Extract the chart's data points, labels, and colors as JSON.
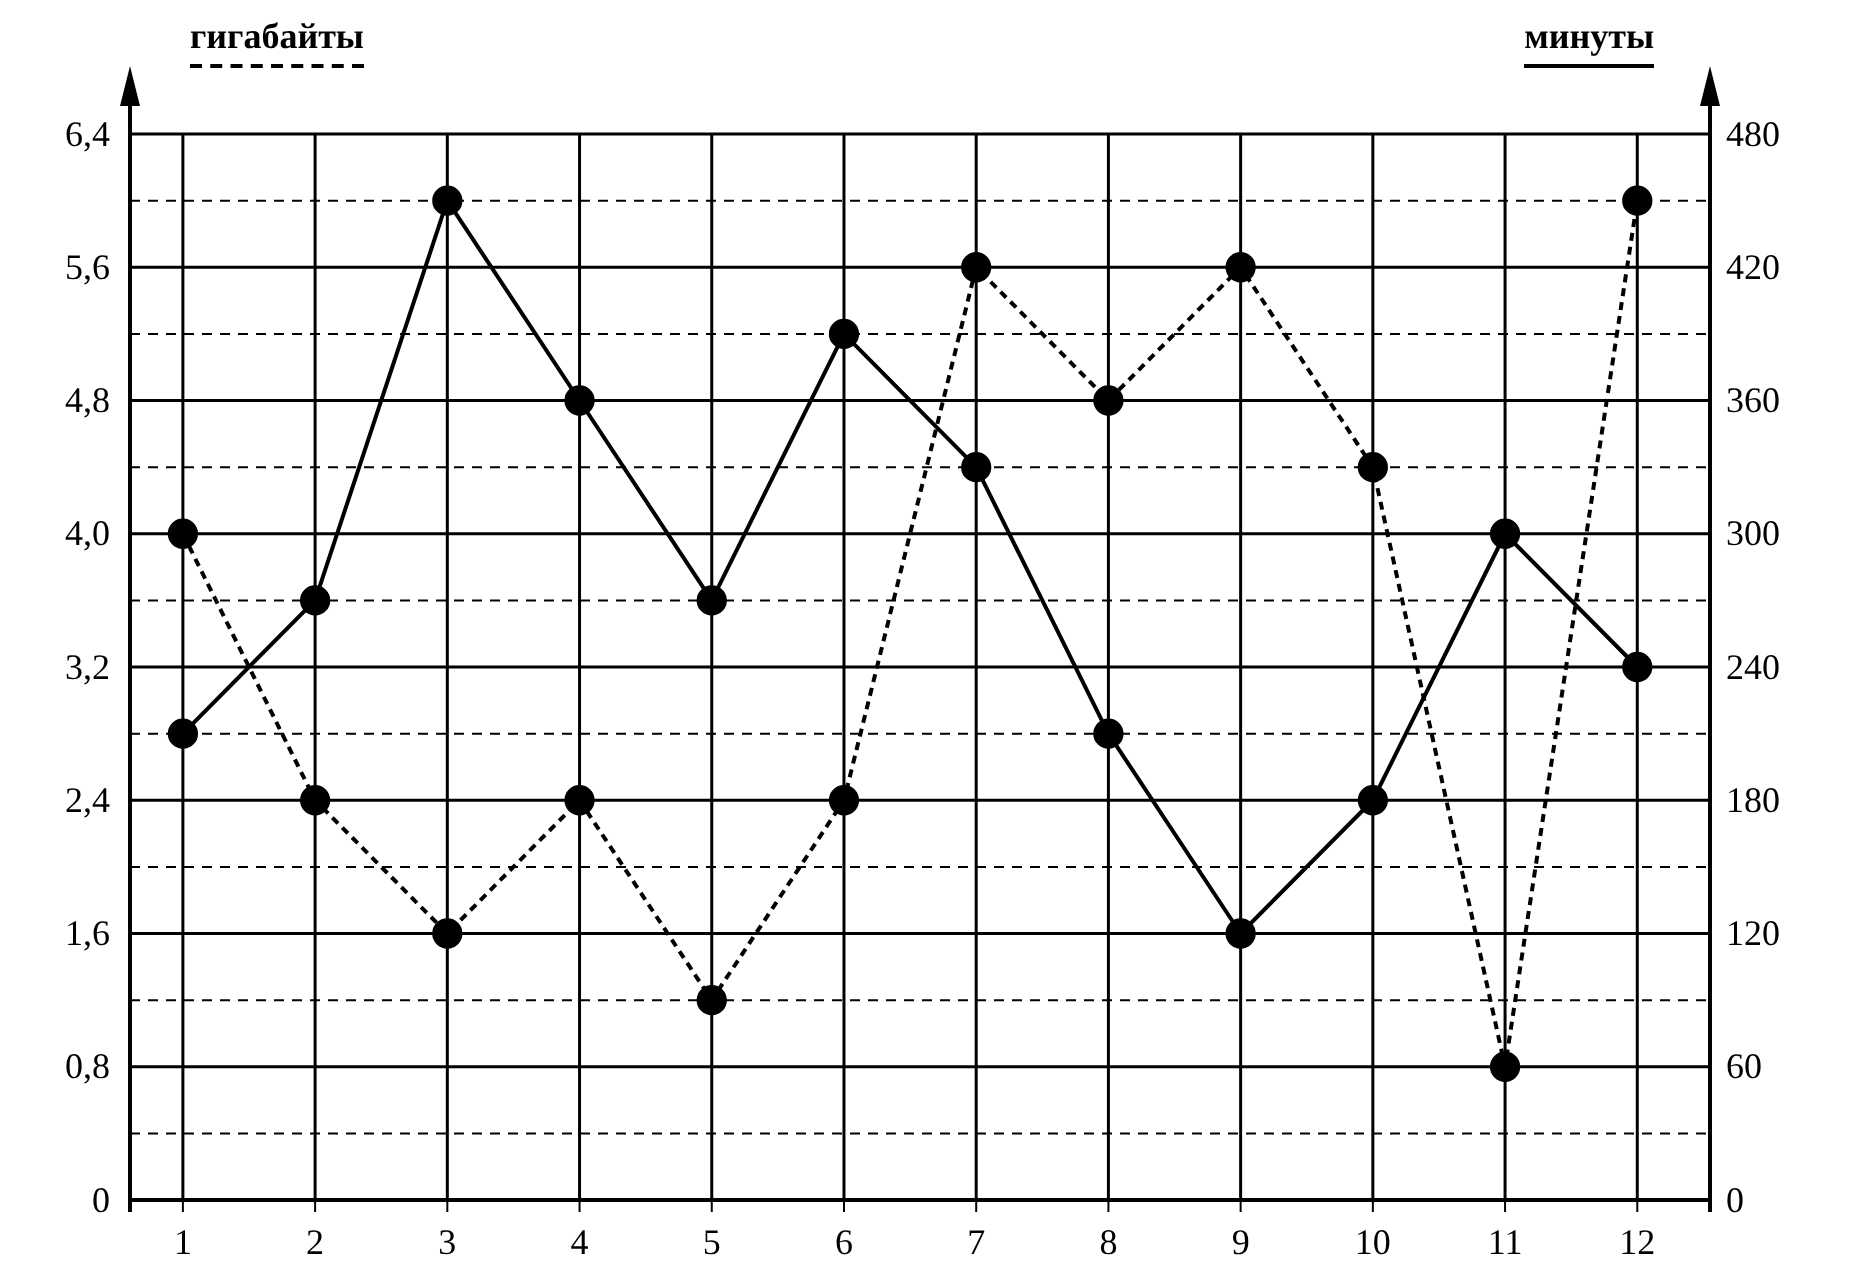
{
  "chart_data": {
    "type": "line",
    "ylabel": "гигабайты",
    "y2label": "минуты",
    "x": [
      1,
      2,
      3,
      4,
      5,
      6,
      7,
      8,
      9,
      10,
      11,
      12
    ],
    "xlim": [
      0.6,
      12.55
    ],
    "xticks": [
      1,
      2,
      3,
      4,
      5,
      6,
      7,
      8,
      9,
      10,
      11,
      12
    ],
    "ylim": [
      0,
      6.4
    ],
    "yticks": [
      0,
      {
        "value": 0.4,
        "label": null
      },
      {
        "value": 0.8,
        "label": "0,8"
      },
      {
        "value": 1.2,
        "label": null
      },
      {
        "value": 1.6,
        "label": "1,6"
      },
      {
        "value": 2.0,
        "label": null
      },
      {
        "value": 2.4,
        "label": "2,4"
      },
      {
        "value": 2.8,
        "label": null
      },
      {
        "value": 3.2,
        "label": "3,2"
      },
      {
        "value": 3.6,
        "label": null
      },
      {
        "value": 4.0,
        "label": "4,0"
      },
      {
        "value": 4.4,
        "label": null
      },
      {
        "value": 4.8,
        "label": "4,8"
      },
      {
        "value": 5.2,
        "label": null
      },
      {
        "value": 5.6,
        "label": "5,6"
      },
      {
        "value": 6.0,
        "label": null
      },
      {
        "value": 6.4,
        "label": "6,4"
      }
    ],
    "y2lim": [
      0,
      480
    ],
    "y2ticks": [
      0,
      60,
      120,
      180,
      240,
      300,
      360,
      420,
      480
    ],
    "grid": true,
    "marker": "circle",
    "series": [
      {
        "color": "#000000",
        "line_style": "dashed",
        "values": [
          4.0,
          2.4,
          1.6,
          2.4,
          1.2,
          2.4,
          5.6,
          4.8,
          5.6,
          4.4,
          0.8,
          6.0
        ]
      },
      {
        "color": "#000000",
        "line_style": "solid",
        "axis": "y2",
        "values": [
          210,
          270,
          450,
          360,
          270,
          390,
          330,
          210,
          120,
          180,
          300,
          240
        ]
      }
    ]
  }
}
